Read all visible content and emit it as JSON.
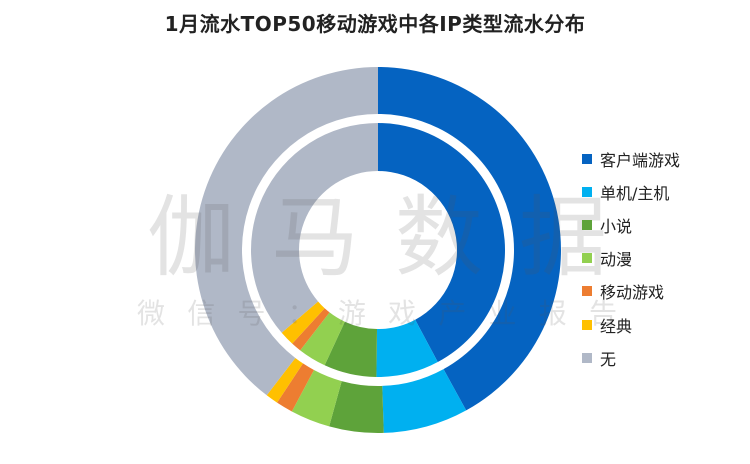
{
  "chart_data": {
    "type": "pie",
    "subtype": "double-donut",
    "title": "1月流水TOP50移动游戏中各IP类型流水分布",
    "categories": [
      "客户端游戏",
      "单机/主机",
      "小说",
      "动漫",
      "移动游戏",
      "经典",
      "无"
    ],
    "colors": [
      "#0563c1",
      "#00b0f0",
      "#5ea33a",
      "#92d050",
      "#ed7d31",
      "#ffc000",
      "#b0b8c7"
    ],
    "series": [
      {
        "ring": "outer",
        "values": [
          42.0,
          7.5,
          4.8,
          3.5,
          1.5,
          1.1,
          39.6
        ]
      },
      {
        "ring": "inner",
        "values": [
          42.2,
          8.0,
          6.7,
          3.6,
          1.3,
          1.9,
          36.3
        ]
      }
    ],
    "legend_position": "right"
  },
  "watermark": {
    "main": "伽马数据",
    "sub": "微信号：游戏产业报告"
  }
}
